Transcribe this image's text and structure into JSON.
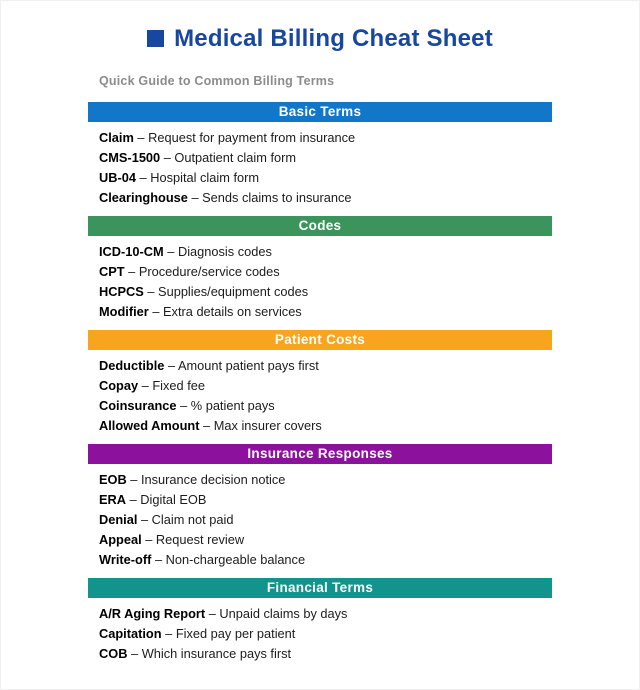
{
  "page": {
    "title": "Medical Billing Cheat Sheet",
    "subtitle": "Quick Guide to Common Billing Terms",
    "title_color": "#17479E"
  },
  "separator": "–",
  "sections": [
    {
      "title": "Basic Terms",
      "color": "#1277C8",
      "terms": [
        {
          "term": "Claim",
          "definition": "Request for payment from insurance"
        },
        {
          "term": "CMS-1500",
          "definition": "Outpatient claim form"
        },
        {
          "term": "UB-04",
          "definition": "Hospital claim form"
        },
        {
          "term": "Clearinghouse",
          "definition": "Sends claims to insurance"
        }
      ]
    },
    {
      "title": "Codes",
      "color": "#3A945B",
      "terms": [
        {
          "term": "ICD-10-CM",
          "definition": "Diagnosis codes"
        },
        {
          "term": "CPT",
          "definition": "Procedure/service codes"
        },
        {
          "term": "HCPCS",
          "definition": "Supplies/equipment codes"
        },
        {
          "term": "Modifier",
          "definition": "Extra details on services"
        }
      ]
    },
    {
      "title": "Patient Costs",
      "color": "#F8A41C",
      "terms": [
        {
          "term": "Deductible",
          "definition": "Amount patient pays first"
        },
        {
          "term": "Copay",
          "definition": "Fixed fee"
        },
        {
          "term": "Coinsurance",
          "definition": "% patient pays"
        },
        {
          "term": "Allowed Amount",
          "definition": "Max insurer covers"
        }
      ]
    },
    {
      "title": "Insurance Responses",
      "color": "#8C119C",
      "terms": [
        {
          "term": "EOB",
          "definition": "Insurance decision notice"
        },
        {
          "term": "ERA",
          "definition": "Digital EOB"
        },
        {
          "term": "Denial",
          "definition": "Claim not paid"
        },
        {
          "term": "Appeal",
          "definition": "Request review"
        },
        {
          "term": "Write-off",
          "definition": "Non-chargeable balance"
        }
      ]
    },
    {
      "title": "Financial Terms",
      "color": "#11948E",
      "terms": [
        {
          "term": "A/R Aging Report",
          "definition": "Unpaid claims by days"
        },
        {
          "term": "Capitation",
          "definition": "Fixed pay per patient"
        },
        {
          "term": "COB",
          "definition": "Which insurance pays first"
        }
      ]
    }
  ]
}
